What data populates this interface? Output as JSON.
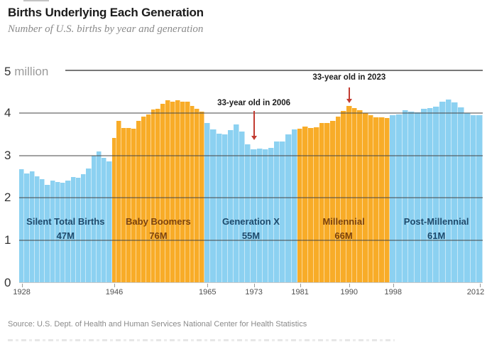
{
  "header": {
    "title": "Births Underlying Each Generation",
    "subtitle": "Number of U.S. births by year and generation"
  },
  "footer": {
    "source": "Source: U.S. Dept. of Health and Human Services National Center for Health Statistics"
  },
  "chart_data": {
    "type": "bar",
    "title": "Births Underlying Each Generation",
    "subtitle": "Number of U.S. births by year and generation",
    "y_axis": {
      "unit_label": "million",
      "top_tick": "5",
      "ticks": [
        4,
        3,
        2,
        1,
        0
      ],
      "ylim": [
        0,
        5
      ]
    },
    "x_axis": {
      "ticks": [
        1928,
        1946,
        1965,
        1973,
        1981,
        1990,
        1998,
        2012
      ],
      "range": [
        1928,
        2012
      ]
    },
    "colors": {
      "blue": "#8CD1F1",
      "orange": "#F8AC28",
      "navy_text": "#1E4A6C",
      "brown_text": "#7C430E",
      "arrow_red": "#C23B31",
      "gridline": "#6F6F6F"
    },
    "layout_hints": {
      "grid": "horizontal-lines-over-bars",
      "equal_width_generation_blocks": true,
      "legend": "none"
    },
    "generations": [
      {
        "name": "Silent Total Births",
        "total": "47M",
        "color_key": "blue",
        "text_key": "navy_text",
        "start_year": 1928,
        "end_year": 1945,
        "values": [
          2.67,
          2.58,
          2.62,
          2.51,
          2.44,
          2.31,
          2.4,
          2.38,
          2.36,
          2.41,
          2.49,
          2.47,
          2.56,
          2.7,
          2.99,
          3.1,
          2.94,
          2.86
        ]
      },
      {
        "name": "Baby Boomers",
        "total": "76M",
        "color_key": "orange",
        "text_key": "brown_text",
        "start_year": 1946,
        "end_year": 1964,
        "values": [
          3.41,
          3.82,
          3.64,
          3.65,
          3.63,
          3.82,
          3.91,
          3.96,
          4.08,
          4.1,
          4.22,
          4.3,
          4.26,
          4.29,
          4.26,
          4.27,
          4.17,
          4.1,
          4.03
        ]
      },
      {
        "name": "Generation X",
        "total": "55M",
        "color_key": "blue",
        "text_key": "navy_text",
        "start_year": 1965,
        "end_year": 1980,
        "values": [
          3.76,
          3.61,
          3.52,
          3.5,
          3.6,
          3.73,
          3.56,
          3.26,
          3.14,
          3.16,
          3.14,
          3.17,
          3.33,
          3.33,
          3.49,
          3.61
        ]
      },
      {
        "name": "Millennial",
        "total": "66M",
        "color_key": "orange",
        "text_key": "brown_text",
        "start_year": 1981,
        "end_year": 1997,
        "values": [
          3.63,
          3.68,
          3.64,
          3.67,
          3.76,
          3.76,
          3.81,
          3.91,
          4.04,
          4.16,
          4.11,
          4.07,
          4.0,
          3.95,
          3.9,
          3.89,
          3.88
        ]
      },
      {
        "name": "Post-Millennial",
        "total": "61M",
        "color_key": "blue",
        "text_key": "navy_text",
        "start_year": 1998,
        "end_year": 2012,
        "values": [
          3.94,
          3.96,
          4.06,
          4.03,
          4.02,
          4.09,
          4.11,
          4.14,
          4.27,
          4.32,
          4.25,
          4.13,
          4.0,
          3.95,
          3.95
        ]
      }
    ],
    "annotations": [
      {
        "text": "33-year old in 2006",
        "year": 1973
      },
      {
        "text": "33-year old in 2023",
        "year": 1990
      }
    ]
  }
}
